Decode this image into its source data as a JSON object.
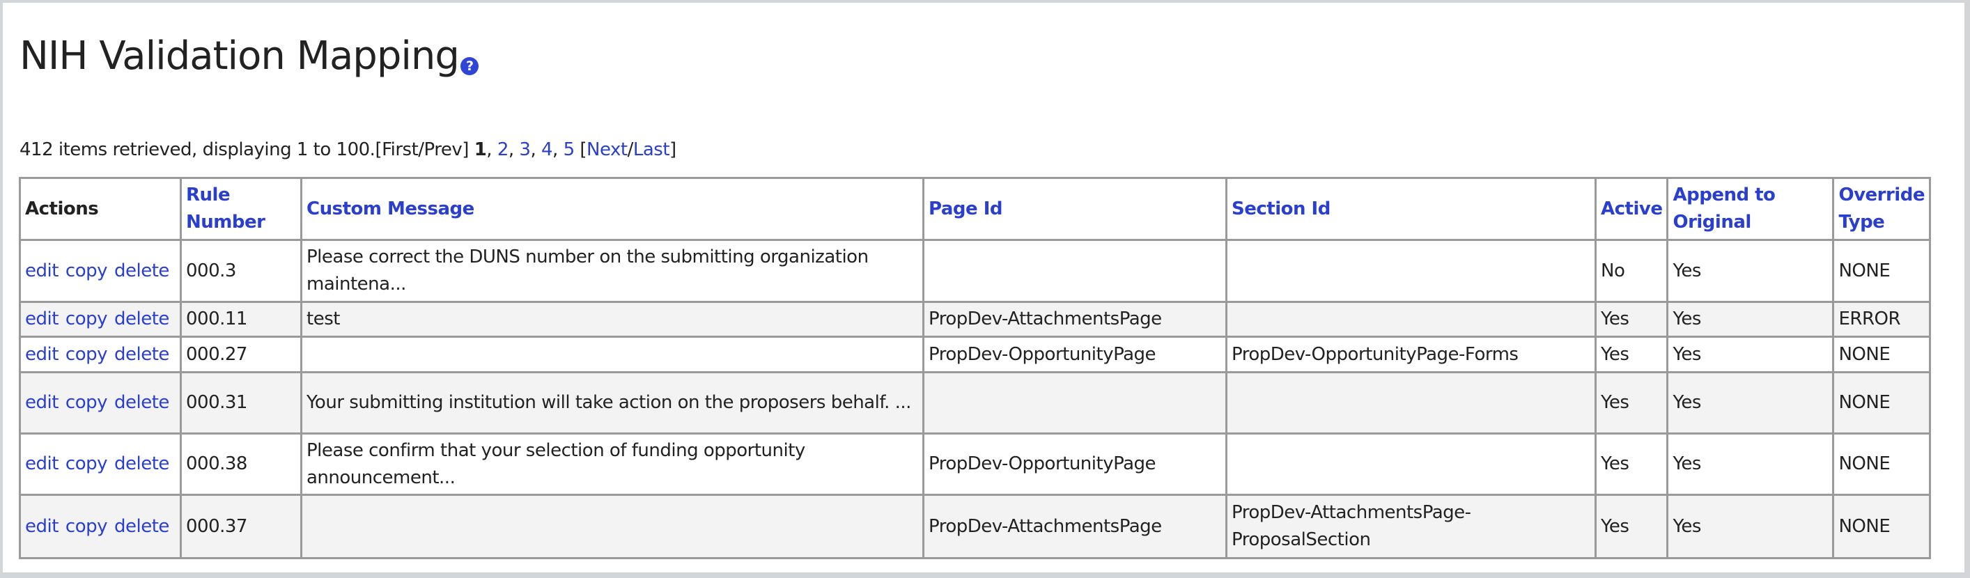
{
  "title": "NIH Validation Mapping",
  "help_icon": "question-circle-icon",
  "pagination": {
    "summary": "412 items retrieved, displaying 1 to 100.",
    "first_prev": "[First/Prev]",
    "current": "1",
    "pages": [
      "2",
      "3",
      "4",
      "5"
    ],
    "next": "Next",
    "last": "Last"
  },
  "table": {
    "headers": [
      "Actions",
      "Rule Number",
      "Custom Message",
      "Page Id",
      "Section Id",
      "Active",
      "Append to Original",
      "Override Type"
    ],
    "actions": [
      "edit",
      "copy",
      "delete"
    ],
    "rows": [
      {
        "rule": "000.3",
        "message": "Please correct the DUNS number on the submitting organization maintena...",
        "page": "",
        "section": "",
        "active": "No",
        "append": "Yes",
        "override": "NONE"
      },
      {
        "rule": "000.11",
        "message": "test",
        "page": "PropDev-AttachmentsPage",
        "section": "",
        "active": "Yes",
        "append": "Yes",
        "override": "ERROR"
      },
      {
        "rule": "000.27",
        "message": "",
        "page": "PropDev-OpportunityPage",
        "section": "PropDev-OpportunityPage-Forms",
        "active": "Yes",
        "append": "Yes",
        "override": "NONE"
      },
      {
        "rule": "000.31",
        "message": "Your submitting institution will take action on the proposers behalf. ...",
        "page": "",
        "section": "",
        "active": "Yes",
        "append": "Yes",
        "override": "NONE"
      },
      {
        "rule": "000.38",
        "message": "Please confirm that your selection of funding opportunity announcement...",
        "page": "PropDev-OpportunityPage",
        "section": "",
        "active": "Yes",
        "append": "Yes",
        "override": "NONE"
      },
      {
        "rule": "000.37",
        "message": "",
        "page": "PropDev-AttachmentsPage",
        "section": "PropDev-AttachmentsPage-ProposalSection",
        "active": "Yes",
        "append": "Yes",
        "override": "NONE"
      }
    ]
  }
}
